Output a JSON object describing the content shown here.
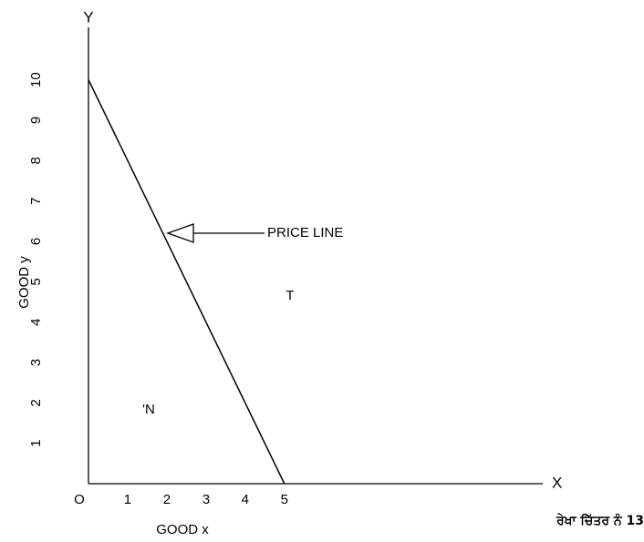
{
  "chart_data": {
    "type": "line",
    "x_label": "GOOD x",
    "y_label": "GOOD y",
    "x_axis_letter": "X",
    "y_axis_letter": "Y",
    "origin_label": "O",
    "x": [
      0,
      5
    ],
    "series": [
      {
        "name": "PRICE LINE",
        "color": "#000000",
        "values": [
          10,
          0
        ]
      }
    ],
    "xlim": [
      0,
      11.5
    ],
    "ylim": [
      0,
      11.3
    ],
    "xticks": [
      1,
      2,
      3,
      4,
      5
    ],
    "yticks": [
      1,
      2,
      3,
      4,
      5,
      6,
      7,
      8,
      9,
      10
    ],
    "annotations": [
      "PRICE LINE",
      "T",
      "'N"
    ],
    "caption": "ਰੇਖਾ ਚਿੱਤਰ ਨੰ 13"
  }
}
